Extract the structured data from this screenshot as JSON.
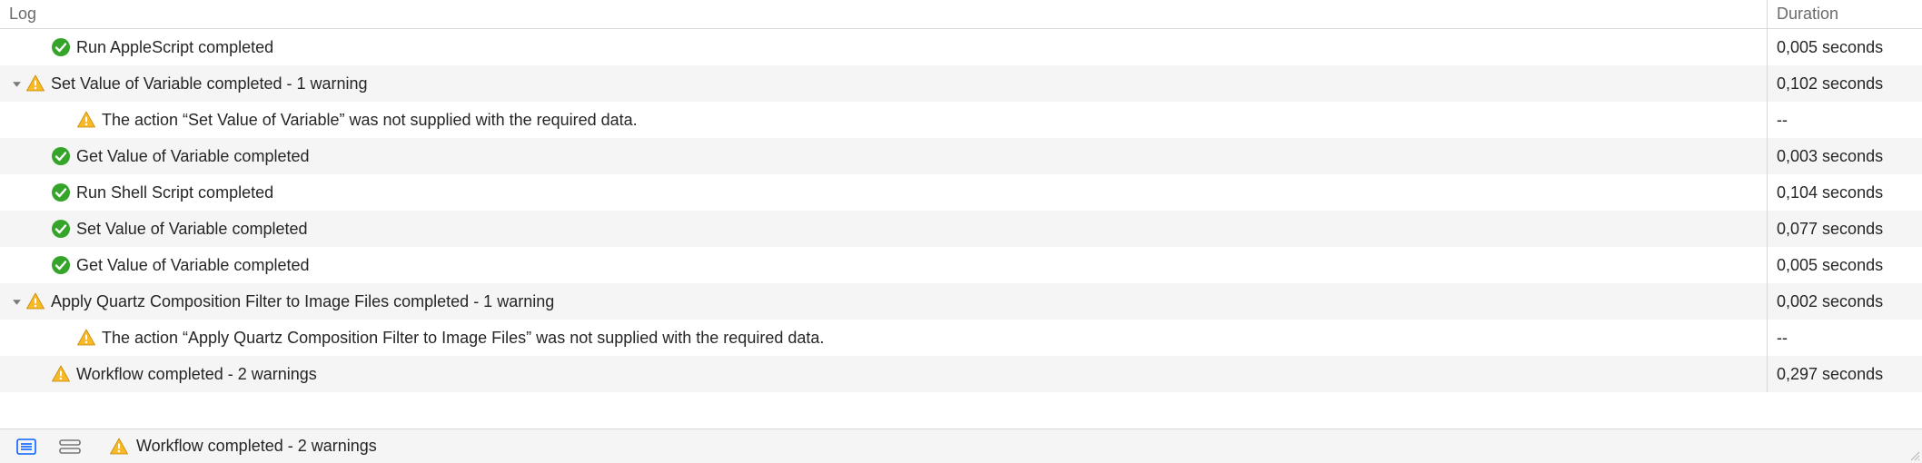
{
  "colors": {
    "header_text": "#6b6b6b",
    "row_alt_bg": "#f5f5f5",
    "row_bg": "#ffffff",
    "border": "#d8d8d8",
    "text": "#262626",
    "success_fill": "#34a529",
    "warning_fill": "#f7b928",
    "warning_stroke": "#c78a05",
    "tool_active": "#0a60ff",
    "tool_inactive": "#777777"
  },
  "header": {
    "log": "Log",
    "duration": "Duration"
  },
  "rows": [
    {
      "indent": 1,
      "disclosure": "none",
      "icon": "success",
      "message": "Run AppleScript completed",
      "duration": "0,005 seconds",
      "alt": false
    },
    {
      "indent": 0,
      "disclosure": "open",
      "icon": "warning",
      "message": "Set Value of Variable completed - 1 warning",
      "duration": "0,102 seconds",
      "alt": true
    },
    {
      "indent": 2,
      "disclosure": "none",
      "icon": "warning",
      "message": "The action “Set Value of Variable” was not supplied with the required data.",
      "duration": "--",
      "alt": false
    },
    {
      "indent": 1,
      "disclosure": "none",
      "icon": "success",
      "message": "Get Value of Variable completed",
      "duration": "0,003 seconds",
      "alt": true
    },
    {
      "indent": 1,
      "disclosure": "none",
      "icon": "success",
      "message": "Run Shell Script completed",
      "duration": "0,104 seconds",
      "alt": false
    },
    {
      "indent": 1,
      "disclosure": "none",
      "icon": "success",
      "message": "Set Value of Variable completed",
      "duration": "0,077 seconds",
      "alt": true
    },
    {
      "indent": 1,
      "disclosure": "none",
      "icon": "success",
      "message": "Get Value of Variable completed",
      "duration": "0,005 seconds",
      "alt": false
    },
    {
      "indent": 0,
      "disclosure": "open",
      "icon": "warning",
      "message": "Apply Quartz Composition Filter to Image Files completed - 1 warning",
      "duration": "0,002 seconds",
      "alt": true
    },
    {
      "indent": 2,
      "disclosure": "none",
      "icon": "warning",
      "message": "The action “Apply Quartz Composition Filter to Image Files” was not supplied with the required data.",
      "duration": "--",
      "alt": false
    },
    {
      "indent": 1,
      "disclosure": "none",
      "icon": "warning",
      "message": "Workflow completed - 2 warnings",
      "duration": "0,297 seconds",
      "alt": true
    }
  ],
  "footer": {
    "status_icon": "warning",
    "status_text": "Workflow completed - 2 warnings"
  }
}
